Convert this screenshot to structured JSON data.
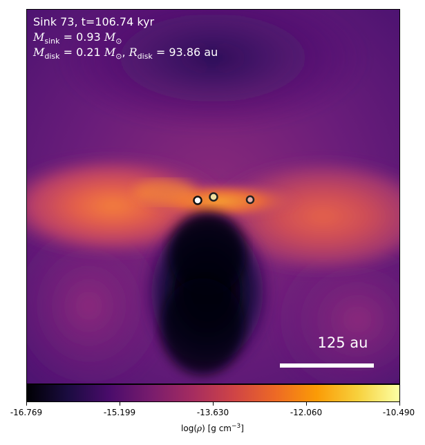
{
  "overlay": {
    "title": "Sink 73, t=106.74 kyr",
    "m_sink_symbol": "M",
    "m_sink_sub": "sink",
    "m_sink_value": " = 0.93 ",
    "m_unit": "M",
    "m_unit_sub": "⊙",
    "m_disk_symbol": "M",
    "m_disk_sub": "disk",
    "m_disk_value": " = 0.21 ",
    "r_disk_symbol": "R",
    "r_disk_sub": "disk",
    "r_disk_value": " = 93.86 au"
  },
  "scale_bar": {
    "label": "125 au"
  },
  "colorbar": {
    "colormap": "inferno",
    "ticks": [
      "-16.769",
      "-15.199",
      "-13.630",
      "-12.060",
      "-10.490"
    ],
    "label_prefix": "log(",
    "label_rho": "ρ",
    "label_mid": ") [g cm",
    "label_exp": "−3",
    "label_suffix": "]"
  },
  "sinks": [
    {
      "fill": "#ffffff",
      "edge": "#111111"
    },
    {
      "fill": "#f0e0a0",
      "edge": "#222222"
    },
    {
      "fill": "#e8b0a8",
      "edge": "#222222"
    }
  ]
}
